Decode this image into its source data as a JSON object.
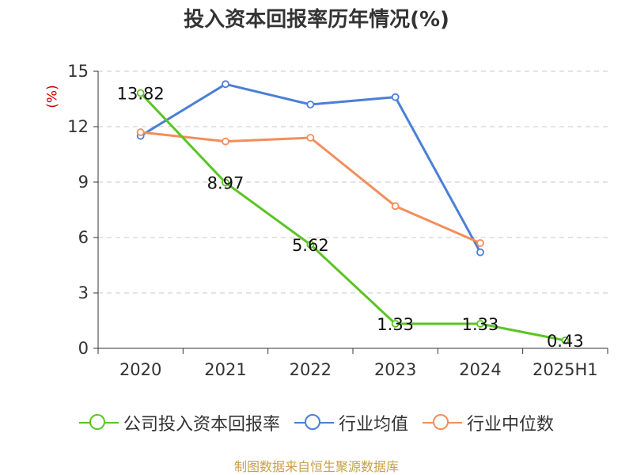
{
  "title": "投入资本回报率历年情况(%)",
  "y_unit_label": "(%)",
  "source": "制图数据来自恒生聚源数据库",
  "chart_data": {
    "type": "line",
    "title": "投入资本回报率历年情况(%)",
    "ylabel": "(%)",
    "xlabel": "",
    "categories": [
      "2020",
      "2021",
      "2022",
      "2023",
      "2024",
      "2025H1"
    ],
    "ylim": [
      0,
      15
    ],
    "yticks": [
      0,
      3,
      6,
      9,
      12,
      15
    ],
    "grid": true,
    "legend_position": "bottom",
    "series": [
      {
        "name": "公司投入资本回报率",
        "color": "#5bc424",
        "values": [
          13.82,
          8.97,
          5.62,
          1.33,
          1.33,
          0.43
        ],
        "labels": [
          "13.82",
          "8.97",
          "5.62",
          "1.33",
          "1.33",
          "0.43"
        ]
      },
      {
        "name": "行业均值",
        "color": "#4a7fd6",
        "values": [
          11.5,
          14.3,
          13.2,
          13.6,
          5.2,
          null
        ]
      },
      {
        "name": "行业中位数",
        "color": "#f28e5b",
        "values": [
          11.7,
          11.2,
          11.4,
          7.7,
          5.7,
          null
        ]
      }
    ]
  }
}
